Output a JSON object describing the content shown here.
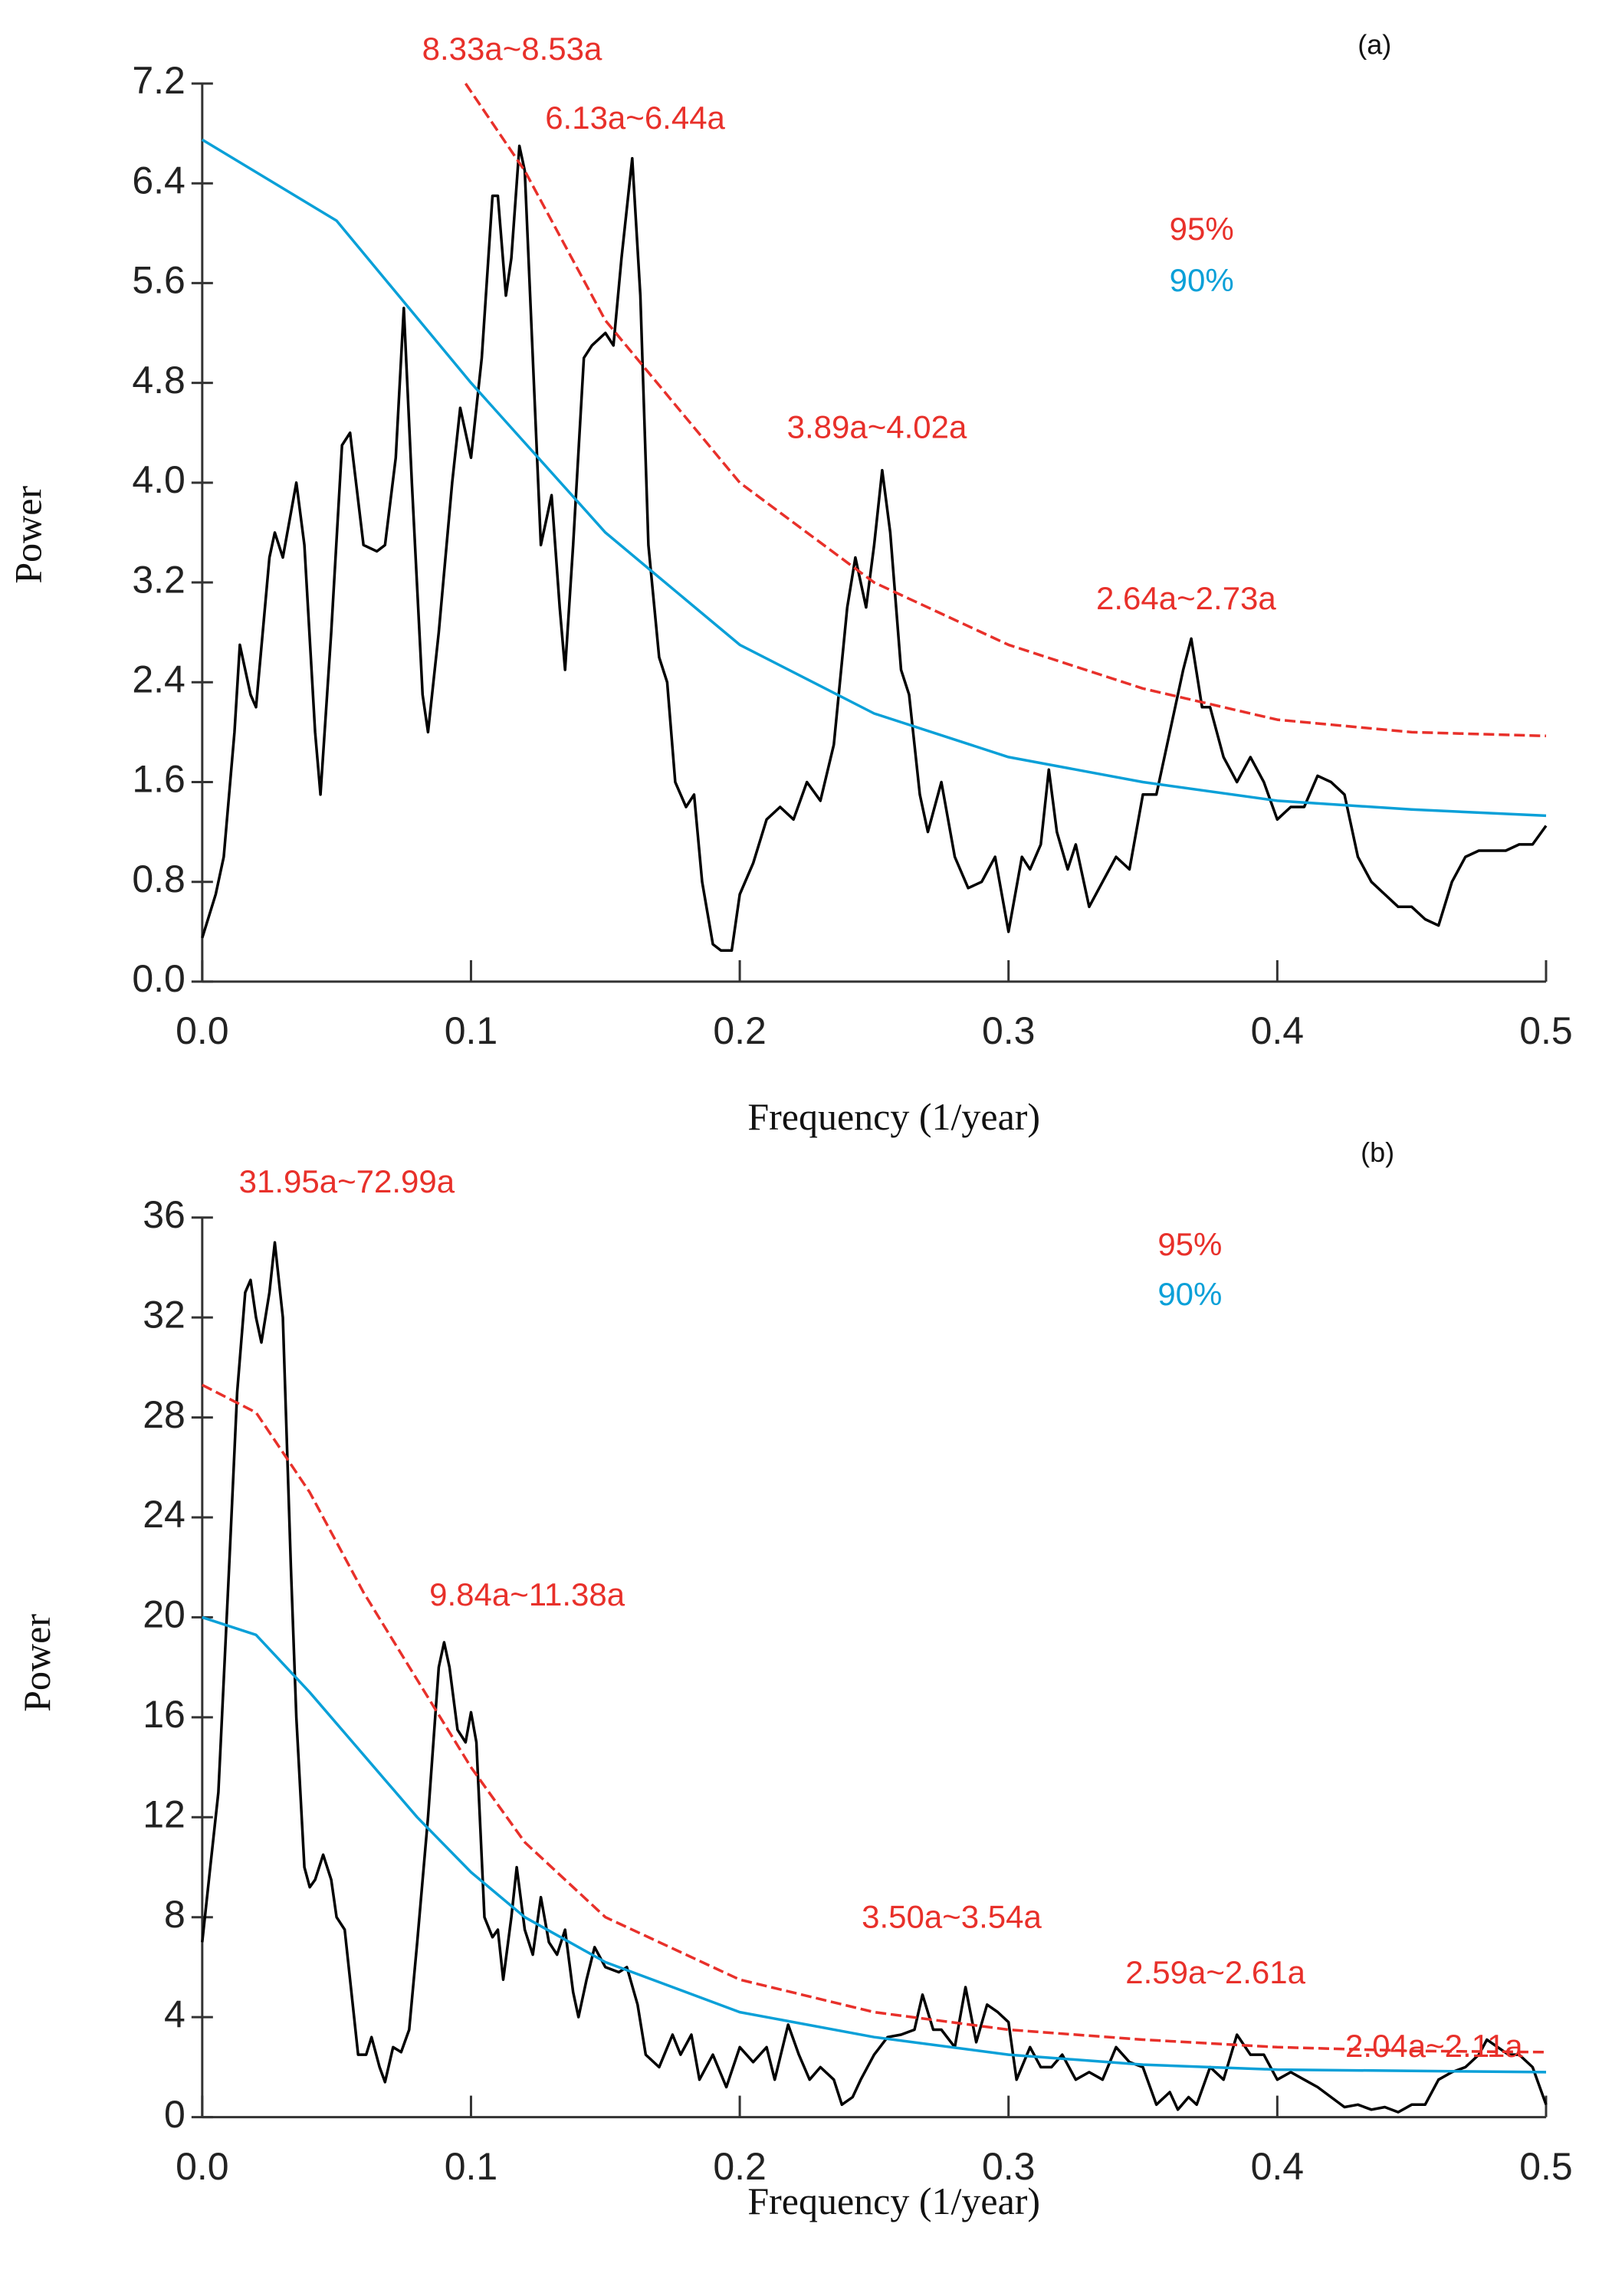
{
  "chart_data": [
    {
      "type": "line",
      "title": "(a)",
      "x_label": "Frequency (1/year)",
      "y_label": "Power",
      "xlim": [
        0,
        0.5
      ],
      "ylim": [
        0,
        7.2
      ],
      "xticks": [
        {
          "value": 0,
          "label": "0.0"
        },
        0.1,
        0.2,
        0.3,
        0.4,
        0.5
      ],
      "yticks": [
        {
          "value": 0,
          "label": "0.0"
        },
        0.8,
        1.6,
        2.4,
        3.2,
        {
          "value": 4,
          "label": "4.0"
        },
        4.8,
        5.6,
        6.4,
        7.2
      ],
      "legend": "upper right",
      "annotations": [
        "8.33a~8.53a",
        "6.13a~6.44a",
        "3.89a~4.02a",
        "2.64a~2.73a"
      ],
      "annotation_color": "#e8302a",
      "series": [
        {
          "name": null,
          "color": "#000000",
          "style": "solid",
          "x": [
            0,
            0.005,
            0.008,
            0.012,
            0.014,
            0.018,
            0.02,
            0.025,
            0.027,
            0.03,
            0.035,
            0.038,
            0.042,
            0.044,
            0.048,
            0.052,
            0.055,
            0.06,
            0.065,
            0.068,
            0.072,
            0.075,
            0.078,
            0.082,
            0.084,
            0.088,
            0.093,
            0.096,
            0.1,
            0.104,
            0.108,
            0.11,
            0.113,
            0.115,
            0.118,
            0.12,
            0.124,
            0.126,
            0.13,
            0.133,
            0.135,
            0.138,
            0.142,
            0.145,
            0.15,
            0.153,
            0.156,
            0.16,
            0.163,
            0.166,
            0.17,
            0.173,
            0.176,
            0.18,
            0.183,
            0.186,
            0.19,
            0.193,
            0.197,
            0.2,
            0.205,
            0.21,
            0.215,
            0.22,
            0.225,
            0.23,
            0.235,
            0.24,
            0.243,
            0.247,
            0.25,
            0.253,
            0.256,
            0.26,
            0.263,
            0.267,
            0.27,
            0.275,
            0.28,
            0.285,
            0.29,
            0.295,
            0.3,
            0.305,
            0.308,
            0.312,
            0.315,
            0.318,
            0.322,
            0.325,
            0.33,
            0.335,
            0.34,
            0.345,
            0.35,
            0.355,
            0.36,
            0.365,
            0.368,
            0.372,
            0.375,
            0.38,
            0.385,
            0.39,
            0.395,
            0.4,
            0.405,
            0.41,
            0.415,
            0.42,
            0.425,
            0.43,
            0.435,
            0.44,
            0.445,
            0.45,
            0.455,
            0.46,
            0.465,
            0.47,
            0.475,
            0.48,
            0.485,
            0.49,
            0.495,
            0.5
          ],
          "values": [
            0.35,
            0.7,
            1.0,
            2.0,
            2.7,
            2.3,
            2.2,
            3.4,
            3.6,
            3.4,
            4.0,
            3.5,
            2.0,
            1.5,
            2.8,
            4.3,
            4.4,
            3.5,
            3.45,
            3.5,
            4.2,
            5.4,
            4.0,
            2.3,
            2.0,
            2.8,
            4.0,
            4.6,
            4.2,
            5.0,
            6.3,
            6.3,
            5.5,
            5.8,
            6.7,
            6.5,
            4.5,
            3.5,
            3.9,
            3.0,
            2.5,
            3.5,
            5.0,
            5.1,
            5.2,
            5.1,
            5.8,
            6.6,
            5.5,
            3.5,
            2.6,
            2.4,
            1.6,
            1.4,
            1.5,
            0.8,
            0.3,
            0.25,
            0.25,
            0.7,
            0.95,
            1.3,
            1.4,
            1.3,
            1.6,
            1.45,
            1.9,
            3.0,
            3.4,
            3.0,
            3.5,
            4.1,
            3.6,
            2.5,
            2.3,
            1.5,
            1.2,
            1.6,
            1.0,
            0.75,
            0.8,
            1.0,
            0.4,
            1.0,
            0.9,
            1.1,
            1.7,
            1.2,
            0.9,
            1.1,
            0.6,
            0.8,
            1.0,
            0.9,
            1.5,
            1.5,
            2.0,
            2.5,
            2.75,
            2.2,
            2.2,
            1.8,
            1.6,
            1.8,
            1.6,
            1.3,
            1.4,
            1.4,
            1.65,
            1.6,
            1.5,
            1.0,
            0.8,
            0.7,
            0.6,
            0.6,
            0.5,
            0.45,
            0.8,
            1.0,
            1.05,
            1.05,
            1.05,
            1.1,
            1.1,
            1.25
          ]
        },
        {
          "name": "95%",
          "color": "#e8302a",
          "style": "dashed",
          "x": [
            0.098,
            0.12,
            0.15,
            0.2,
            0.25,
            0.3,
            0.35,
            0.4,
            0.45,
            0.5
          ],
          "values": [
            7.2,
            6.5,
            5.3,
            4.0,
            3.2,
            2.7,
            2.35,
            2.1,
            2.0,
            1.97
          ]
        },
        {
          "name": "90%",
          "color": "#0aa0d8",
          "style": "solid",
          "x": [
            0,
            0.05,
            0.1,
            0.15,
            0.2,
            0.25,
            0.3,
            0.35,
            0.4,
            0.45,
            0.5
          ],
          "values": [
            6.75,
            6.1,
            4.8,
            3.6,
            2.7,
            2.15,
            1.8,
            1.6,
            1.45,
            1.38,
            1.33
          ]
        }
      ]
    },
    {
      "type": "line",
      "title": "(b)",
      "x_label": "Frequency (1/year)",
      "y_label": "Power",
      "xlim": [
        0,
        0.5
      ],
      "ylim": [
        0,
        36
      ],
      "xticks": [
        {
          "value": 0,
          "label": "0.0"
        },
        0.1,
        0.2,
        0.3,
        0.4,
        0.5
      ],
      "yticks": [
        0,
        4,
        8,
        12,
        16,
        20,
        24,
        28,
        32,
        36
      ],
      "legend": "upper right",
      "annotations": [
        "31.95a~72.99a",
        "9.84a~11.38a",
        "3.50a~3.54a",
        "2.59a~2.61a",
        "2.04a~2.11a"
      ],
      "annotation_color": "#e8302a",
      "series": [
        {
          "name": null,
          "color": "#000000",
          "style": "solid",
          "x": [
            0,
            0.003,
            0.006,
            0.01,
            0.013,
            0.016,
            0.018,
            0.02,
            0.022,
            0.025,
            0.027,
            0.03,
            0.033,
            0.035,
            0.038,
            0.04,
            0.042,
            0.045,
            0.048,
            0.05,
            0.053,
            0.056,
            0.058,
            0.061,
            0.063,
            0.066,
            0.068,
            0.071,
            0.074,
            0.077,
            0.08,
            0.084,
            0.088,
            0.09,
            0.092,
            0.095,
            0.098,
            0.1,
            0.102,
            0.105,
            0.108,
            0.11,
            0.112,
            0.115,
            0.117,
            0.12,
            0.123,
            0.126,
            0.129,
            0.132,
            0.135,
            0.138,
            0.14,
            0.143,
            0.146,
            0.15,
            0.155,
            0.158,
            0.162,
            0.165,
            0.17,
            0.175,
            0.178,
            0.182,
            0.185,
            0.19,
            0.195,
            0.2,
            0.205,
            0.21,
            0.213,
            0.218,
            0.222,
            0.226,
            0.23,
            0.235,
            0.238,
            0.242,
            0.245,
            0.25,
            0.255,
            0.26,
            0.265,
            0.268,
            0.272,
            0.275,
            0.28,
            0.284,
            0.288,
            0.292,
            0.296,
            0.3,
            0.303,
            0.308,
            0.312,
            0.316,
            0.32,
            0.325,
            0.33,
            0.335,
            0.34,
            0.345,
            0.35,
            0.355,
            0.36,
            0.363,
            0.367,
            0.37,
            0.375,
            0.38,
            0.385,
            0.39,
            0.395,
            0.4,
            0.405,
            0.41,
            0.415,
            0.42,
            0.425,
            0.43,
            0.435,
            0.44,
            0.445,
            0.45,
            0.455,
            0.46,
            0.465,
            0.47,
            0.475,
            0.478,
            0.482,
            0.486,
            0.49,
            0.495,
            0.5
          ],
          "values": [
            7,
            10,
            13,
            22,
            29,
            33,
            33.5,
            32,
            31,
            33,
            35,
            32,
            22,
            16,
            10,
            9.2,
            9.5,
            10.5,
            9.5,
            8.0,
            7.5,
            4.5,
            2.5,
            2.5,
            3.2,
            2,
            1.4,
            2.8,
            2.6,
            3.5,
            7,
            12,
            18,
            19,
            18,
            15.5,
            15,
            16.2,
            15,
            8,
            7.2,
            7.5,
            5.5,
            8,
            10,
            7.5,
            6.5,
            8.8,
            7,
            6.5,
            7.5,
            5,
            4,
            5.5,
            6.8,
            6,
            5.8,
            6,
            4.5,
            2.5,
            2,
            3.3,
            2.5,
            3.3,
            1.5,
            2.5,
            1.2,
            2.8,
            2.2,
            2.8,
            1.5,
            3.7,
            2.5,
            1.5,
            2,
            1.5,
            0.5,
            0.8,
            1.5,
            2.5,
            3.2,
            3.3,
            3.5,
            4.9,
            3.5,
            3.5,
            2.8,
            5.2,
            3,
            4.5,
            4.2,
            3.8,
            1.5,
            2.8,
            2,
            2,
            2.5,
            1.5,
            1.8,
            1.5,
            2.8,
            2.2,
            2,
            0.5,
            1,
            0.3,
            0.8,
            0.5,
            2,
            1.5,
            3.3,
            2.5,
            2.5,
            1.5,
            1.8,
            1.5,
            1.2,
            0.8,
            0.4,
            0.5,
            0.3,
            0.4,
            0.2,
            0.5,
            0.5,
            1.5,
            1.8,
            2,
            2.5,
            3.1,
            2.8,
            2.5,
            2.5,
            2.0,
            0.5
          ]
        },
        {
          "name": "95%",
          "color": "#e8302a",
          "style": "dashed",
          "x": [
            0,
            0.02,
            0.04,
            0.06,
            0.08,
            0.1,
            0.12,
            0.15,
            0.2,
            0.25,
            0.3,
            0.35,
            0.4,
            0.45,
            0.5
          ],
          "values": [
            29.3,
            28.2,
            25,
            21,
            17.5,
            14,
            11,
            8,
            5.5,
            4.2,
            3.5,
            3.1,
            2.8,
            2.65,
            2.6
          ]
        },
        {
          "name": "90%",
          "color": "#0aa0d8",
          "style": "solid",
          "x": [
            0,
            0.02,
            0.04,
            0.06,
            0.08,
            0.1,
            0.12,
            0.15,
            0.2,
            0.25,
            0.3,
            0.35,
            0.4,
            0.45,
            0.5
          ],
          "values": [
            20,
            19.3,
            17,
            14.5,
            12,
            9.8,
            8,
            6.2,
            4.2,
            3.2,
            2.5,
            2.1,
            1.9,
            1.85,
            1.8
          ]
        }
      ]
    }
  ]
}
